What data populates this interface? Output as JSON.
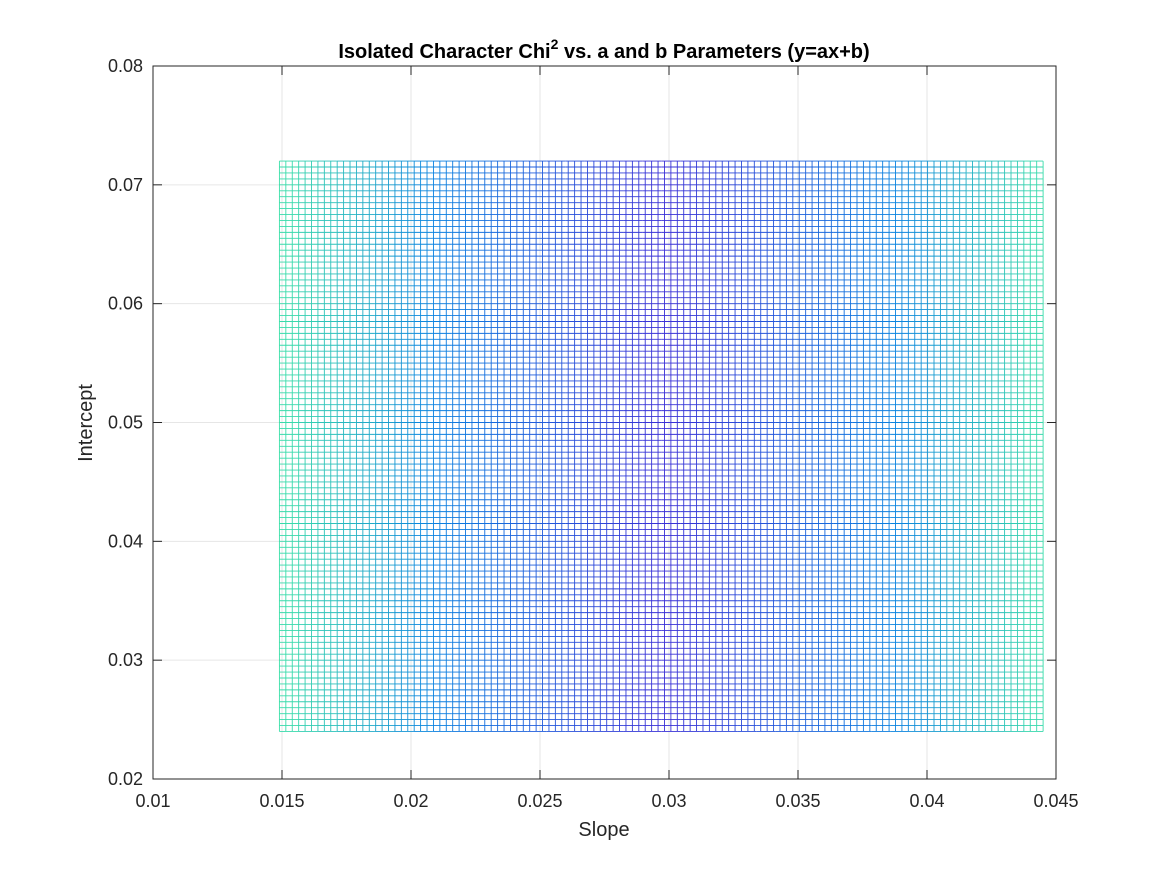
{
  "chart_data": {
    "type": "heatmap",
    "style": "mesh",
    "title": {
      "prefix": "Isolated Character Chi",
      "superscript": "2",
      "suffix": " vs. a and b Parameters (y=ax+b)"
    },
    "xlabel": "Slope",
    "ylabel": "Intercept",
    "xlim": [
      0.01,
      0.045
    ],
    "ylim": [
      0.02,
      0.08
    ],
    "xticks": [
      0.01,
      0.015,
      0.02,
      0.025,
      0.03,
      0.035,
      0.04,
      0.045
    ],
    "xtick_labels": [
      "0.01",
      "0.015",
      "0.02",
      "0.025",
      "0.03",
      "0.035",
      "0.04",
      "0.045"
    ],
    "yticks": [
      0.02,
      0.03,
      0.04,
      0.05,
      0.06,
      0.07,
      0.08
    ],
    "ytick_labels": [
      "0.02",
      "0.03",
      "0.04",
      "0.05",
      "0.06",
      "0.07",
      "0.08"
    ],
    "grid": true,
    "mesh": {
      "x_range": [
        0.0149,
        0.0445
      ],
      "y_range": [
        0.024,
        0.072
      ],
      "x_count": 120,
      "y_count": 97,
      "minimum_x": 0.0298,
      "colormap": "parula",
      "edge_color_low": "#3b2fd6",
      "edge_color_mid": "#0a82e0",
      "edge_color_high": "#3ce0a8"
    }
  }
}
